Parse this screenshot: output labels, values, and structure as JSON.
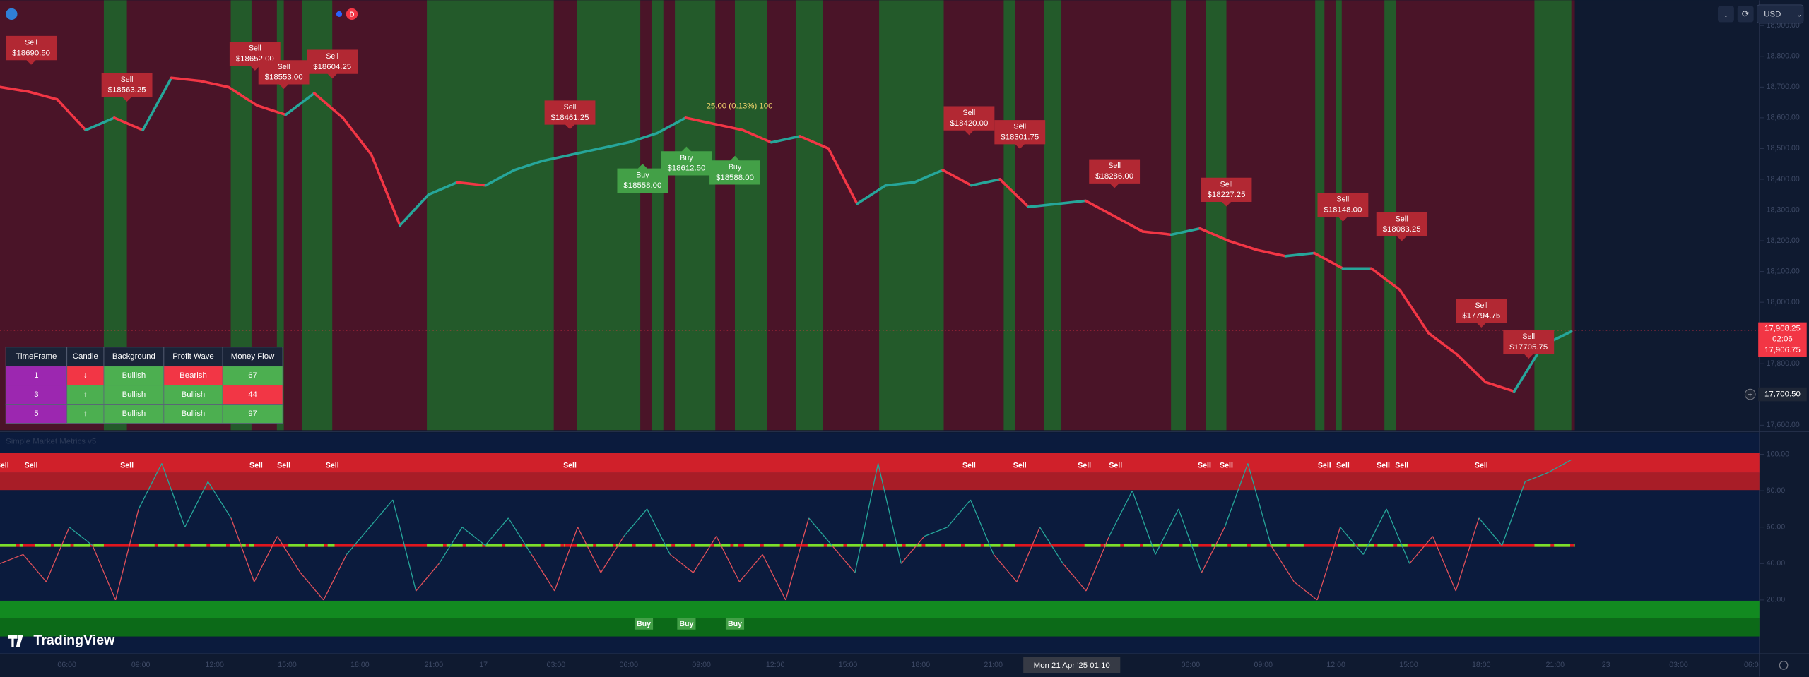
{
  "header": {
    "badge": "D"
  },
  "toolbar": {
    "currency": "USD"
  },
  "annotation": "25.00 (0.13%) 100",
  "price_axis": {
    "ylim": [
      17584,
      18982.5
    ],
    "yticks": [
      {
        "value": 18900,
        "label": "18,900.00"
      },
      {
        "value": 18800,
        "label": "18,800.00"
      },
      {
        "value": 18700,
        "label": "18,700.00"
      },
      {
        "value": 18600,
        "label": "18,600.00"
      },
      {
        "value": 18500,
        "label": "18,500.00"
      },
      {
        "value": 18400,
        "label": "18,400.00"
      },
      {
        "value": 18300,
        "label": "18,300.00"
      },
      {
        "value": 18200,
        "label": "18,200.00"
      },
      {
        "value": 18100,
        "label": "18,100.00"
      },
      {
        "value": 18000,
        "label": "18,000.00"
      },
      {
        "value": 17800,
        "label": "17,800.00"
      },
      {
        "value": 17600,
        "label": "17,600.00"
      }
    ],
    "last_price": {
      "value": 17908.25,
      "label": "17,908.25"
    },
    "countdown": "02:06",
    "last_price_2": {
      "value": 17906.75,
      "label": "17,906.75"
    },
    "crosshair": {
      "value": 17700.5,
      "label": "17,700.50"
    }
  },
  "price": {
    "color_up": "#26a69a",
    "color_down": "#f23645",
    "values": [
      18700,
      18685,
      18660,
      18560,
      18600,
      18560,
      18730,
      18720,
      18700,
      18640,
      18610,
      18680,
      18600,
      18480,
      18250,
      18350,
      18390,
      18380,
      18430,
      18460,
      18480,
      18500,
      18520,
      18550,
      18600,
      18580,
      18560,
      18520,
      18540,
      18500,
      18320,
      18380,
      18390,
      18430,
      18380,
      18400,
      18310,
      18320,
      18330,
      18280,
      18230,
      18220,
      18240,
      18200,
      18170,
      18150,
      18160,
      18110,
      18110,
      18040,
      17900,
      17830,
      17740,
      17710,
      17860,
      17905
    ]
  },
  "sell_labels": [
    {
      "text": "Sell",
      "price": "$18690.50"
    },
    {
      "text": "Sell",
      "price": "$18563.25"
    },
    {
      "text": "Sell",
      "price": "$18652.00"
    },
    {
      "text": "Sell",
      "price": "$18553.00"
    },
    {
      "text": "Sell",
      "price": "$18604.25"
    },
    {
      "text": "Sell",
      "price": "$18461.25"
    },
    {
      "text": "Sell",
      "price": "$18420.00"
    },
    {
      "text": "Sell",
      "price": "$18301.75"
    },
    {
      "text": "Sell",
      "price": "$18286.00"
    },
    {
      "text": "Sell",
      "price": "$18227.25"
    },
    {
      "text": "Sell",
      "price": "$18148.00"
    },
    {
      "text": "Sell",
      "price": "$18083.25"
    },
    {
      "text": "Sell",
      "price": "$17794.75"
    },
    {
      "text": "Sell",
      "price": "$17705.75"
    }
  ],
  "buy_labels": [
    {
      "text": "Buy",
      "price": "$18558.00"
    },
    {
      "text": "Buy",
      "price": "$18612.50"
    },
    {
      "text": "Buy",
      "price": "$18588.00"
    }
  ],
  "table": {
    "header": [
      "TimeFrame",
      "Candle",
      "Background",
      "Profit Wave",
      "Money Flow"
    ],
    "rows": [
      [
        "1",
        "↓",
        "Bullish",
        "Bearish",
        "67"
      ],
      [
        "3",
        "↑",
        "Bullish",
        "Bullish",
        "44"
      ],
      [
        "5",
        "↑",
        "Bullish",
        "Bullish",
        "97"
      ]
    ]
  },
  "indicator": {
    "name": "Simple Market Metrics v5",
    "ylim": [
      -9.5,
      112
    ],
    "yticks": [
      {
        "value": 100,
        "label": "100.00"
      },
      {
        "value": 80,
        "label": "80.00"
      },
      {
        "value": 60,
        "label": "60.00"
      },
      {
        "value": 40,
        "label": "40.00"
      },
      {
        "value": 20,
        "label": "20.00"
      }
    ],
    "values": [
      40,
      45,
      30,
      60,
      50,
      20,
      70,
      95,
      60,
      85,
      65,
      30,
      55,
      35,
      20,
      45,
      60,
      75,
      25,
      40,
      60,
      50,
      65,
      45,
      25,
      60,
      35,
      55,
      70,
      45,
      35,
      55,
      30,
      45,
      20,
      65,
      50,
      35,
      95,
      40,
      55,
      60,
      75,
      45,
      30,
      60,
      40,
      25,
      55,
      80,
      45,
      70,
      35,
      60,
      95,
      50,
      30,
      20,
      60,
      45,
      70,
      40,
      55,
      25,
      65,
      50,
      85,
      90,
      97
    ],
    "sell_markers": [
      "Sell",
      "Sell",
      "Sell",
      "Sell",
      "Sell",
      "Sell",
      "Sell",
      "Sell",
      "Sell",
      "Sell",
      "Sell",
      "Sell",
      "Sell",
      "Sell",
      "Sell",
      "Sell",
      "Sell",
      "Sell"
    ],
    "buy_markers": [
      "Buy",
      "Buy",
      "Buy"
    ]
  },
  "time_axis": [
    "06:00",
    "09:00",
    "12:00",
    "15:00",
    "18:00",
    "21:00",
    "17",
    "03:00",
    "06:00",
    "09:00",
    "12:00",
    "15:00",
    "18:00",
    "21:00",
    "06:00",
    "09:00",
    "12:00",
    "15:00",
    "18:00",
    "21:00",
    "23",
    "03:00",
    "06:0"
  ],
  "crosshair_time": "Mon 21 Apr '25  01:10",
  "brand": "TradingView"
}
